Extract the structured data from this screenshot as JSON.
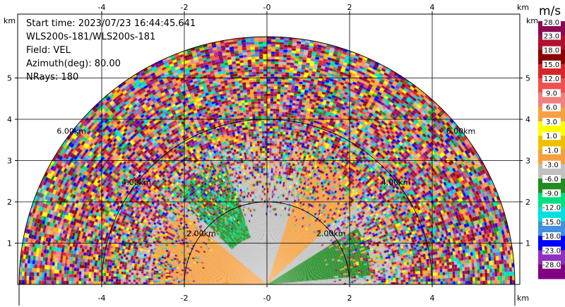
{
  "info": {
    "start_time": "Start time: 2023/07/23 16:44:45.641",
    "instrument": "WLS200s-181/WLS200s-181",
    "field": "Field: VEL",
    "azimuth": "Azimuth(deg): 80.00",
    "nrays": "NRays: 180"
  },
  "colorbar": {
    "unit": "m/s",
    "labels": [
      "28.0",
      "23.0",
      "18.0",
      "15.0",
      "12.0",
      "9.0",
      "6.0",
      "3.0",
      "1.0",
      "-1.0",
      "-3.0",
      "-6.0",
      "-9.0",
      "-12.0",
      "-15.0",
      "-18.0",
      "-23.0",
      "-28.0"
    ],
    "colors": [
      "#8b0a50",
      "#b01030",
      "#8b0000",
      "#d62728",
      "#f05050",
      "#f08080",
      "#f7a040",
      "#ffff00",
      "#f0c000",
      "#f4a040",
      "#c0c0c0",
      "#228b22",
      "#00e080",
      "#00e0e0",
      "#4090e0",
      "#0000ff",
      "#9030c0",
      "#800080"
    ]
  },
  "chart_data": {
    "type": "heatmap",
    "title": "",
    "xlabel": "km",
    "ylabel": "km",
    "xlim": [
      -6.0,
      6.0
    ],
    "ylim": [
      0.0,
      6.0
    ],
    "x_ticks": [
      "-4",
      "-2",
      "-0",
      "2",
      "4"
    ],
    "y_ticks": [
      "1",
      "2",
      "3",
      "4",
      "5"
    ],
    "range_rings_km": [
      2,
      4,
      6
    ],
    "ring_labels": [
      "2.00km",
      "4.00km",
      "6.00km"
    ],
    "field": "VEL",
    "units": "m/s",
    "azimuth_deg": 80.0,
    "nrays": 180,
    "max_range_km": 6.0,
    "regions": [
      {
        "name": "near-field negative (green)",
        "value": -2.0
      },
      {
        "name": "near-field positive (orange)",
        "value": 2.0
      },
      {
        "name": "near-field zero (gray)",
        "value": 0.0
      }
    ]
  }
}
